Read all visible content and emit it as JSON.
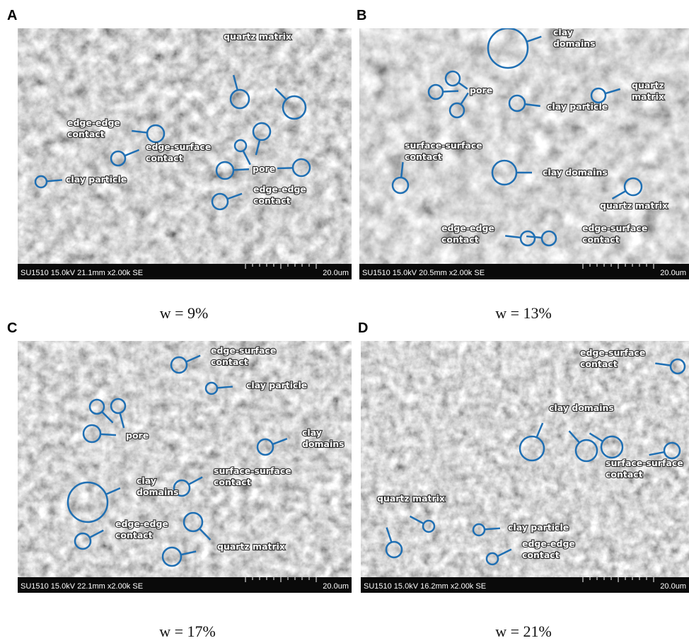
{
  "panels": [
    {
      "letter": "A",
      "caption": "w = 9%",
      "footer": "SU1510 15.0kV 21.1mm x2.00k SE",
      "scale": "20.0um",
      "annotations": [
        "quartz matrix",
        "edge-edge\ncontact",
        "edge-surface\ncontact",
        "clay particle",
        "pore",
        "edge-edge\ncontact"
      ]
    },
    {
      "letter": "B",
      "caption": "w = 13%",
      "footer": "SU1510 15.0kV 20.5mm x2.00k SE",
      "scale": "20.0um",
      "annotations": [
        "clay\ndomains",
        "pore",
        "clay particle",
        "quartz\nmatrix",
        "surface-surface\ncontact",
        "clay domains",
        "quartz matrix",
        "edge-edge\ncontact",
        "edge-surface\ncontact"
      ]
    },
    {
      "letter": "C",
      "caption": "w = 17%",
      "footer": "SU1510 15.0kV 22.1mm x2.00k SE",
      "scale": "20.0um",
      "annotations": [
        "edge-surface\ncontact",
        "clay particle",
        "pore",
        "clay\ndomains",
        "surface-surface\ncontact",
        "clay\ndomains",
        "edge-edge\ncontact",
        "quartz matrix"
      ]
    },
    {
      "letter": "D",
      "caption": "w = 21%",
      "footer": "SU1510 15.0kV 16.2mm x2.00k SE",
      "scale": "20.0um",
      "annotations": [
        "edge-surface\ncontact",
        "clay domains",
        "surface-surface\ncontact",
        "quartz matrix",
        "clay particle",
        "edge-edge\ncontact"
      ]
    }
  ]
}
